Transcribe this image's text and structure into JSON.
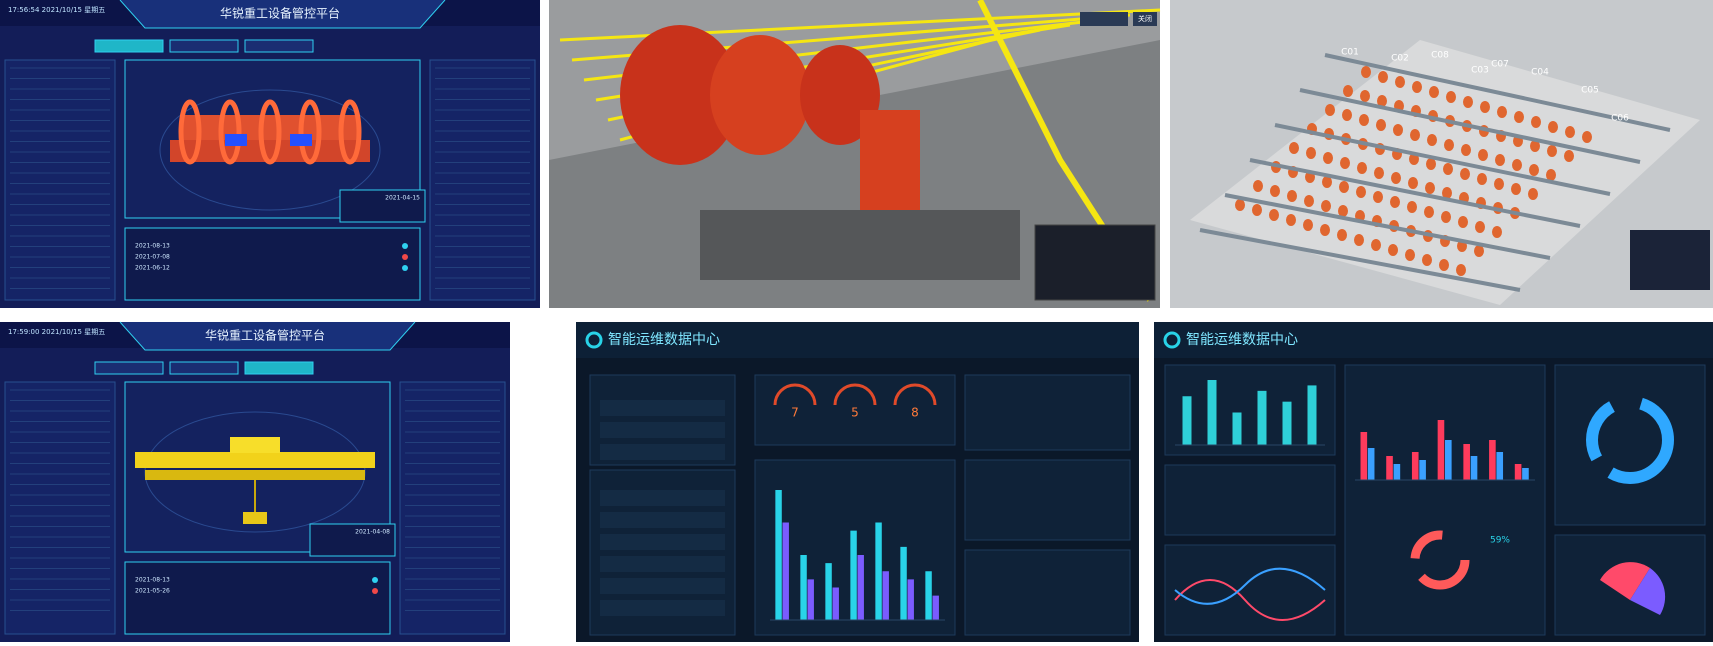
{
  "panels": [
    {
      "title": "华锐重工设备管控平台",
      "clock": "17:56:54 2021/10/15 星期五",
      "info_date": "2021-04-15",
      "table_dates": [
        "2021-08-13",
        "2021-07-08",
        "2021-06-12"
      ]
    },
    {
      "button": "关闭"
    },
    {
      "labels": [
        "C01",
        "C02",
        "C03",
        "C04",
        "C05",
        "C06",
        "C07",
        "C08"
      ]
    },
    {
      "title": "华锐重工设备管控平台",
      "clock": "17:59:00 2021/10/15 星期五",
      "info_date": "2021-04-08",
      "table_dates": [
        "2021-08-13",
        "2021-05-26"
      ]
    },
    {
      "title": "智能运维数据中心",
      "gauges": [
        "7",
        "5",
        "8"
      ],
      "chart": {
        "type": "bar",
        "series": [
          {
            "color": "#29d3e8",
            "values": [
              80,
              40,
              35,
              55,
              60,
              45,
              30
            ]
          },
          {
            "color": "#7b5cff",
            "values": [
              60,
              25,
              20,
              40,
              30,
              25,
              15
            ]
          }
        ]
      }
    },
    {
      "title": "智能运维数据中心",
      "donut_label": "59%",
      "chart_top": {
        "type": "bar",
        "series": [
          {
            "color": "#2fd0d8",
            "values": [
              45,
              60,
              30,
              50,
              40,
              55
            ]
          }
        ]
      },
      "chart_mid": {
        "type": "bar",
        "series": [
          {
            "color": "#ff3b5c",
            "values": [
              60,
              30,
              35,
              75,
              45,
              50,
              20
            ]
          },
          {
            "color": "#3aa0ff",
            "values": [
              40,
              20,
              25,
              50,
              30,
              35,
              15
            ]
          }
        ]
      }
    }
  ]
}
